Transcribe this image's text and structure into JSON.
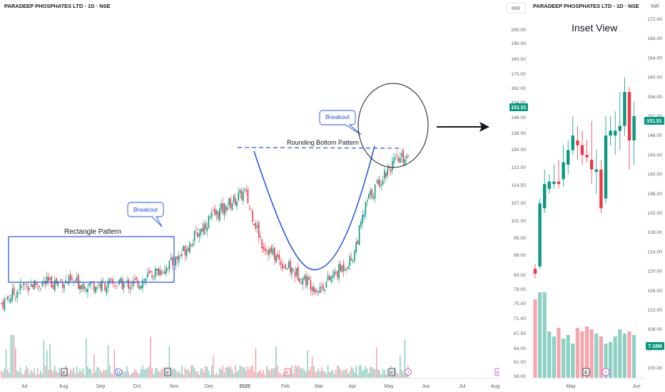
{
  "main": {
    "title": "PARADEEP PHOSPHATES LTD · 1D · NSE",
    "x_labels": [
      "Jul",
      "Aug",
      "Sep",
      "Oct",
      "Nov",
      "Dec",
      "2025",
      "Feb",
      "Mar",
      "Apr",
      "May",
      "Jun",
      "Jul",
      "Aug"
    ],
    "annotations": {
      "rectangle_label": "Rectangle Pattern",
      "breakout_left": "Breakout",
      "rounding_label": "Rounding Bottom Pattern",
      "breakout_right": "Breakout"
    },
    "event_markers": [
      {
        "type": "earnings",
        "glyph": "E",
        "month": "Aug"
      },
      {
        "type": "dividend",
        "glyph": "D",
        "month": "Oct"
      },
      {
        "type": "earnings",
        "glyph": "E",
        "month": "Nov"
      },
      {
        "type": "split",
        "glyph": "E",
        "month": "2025"
      },
      {
        "type": "earnings",
        "glyph": "E",
        "month": "May"
      },
      {
        "type": "flash",
        "glyph": "⚡",
        "month": "May"
      }
    ]
  },
  "inset": {
    "title": "PARADEEP PHOSPHATES LTD · 1D · NSE",
    "currency": "INR",
    "label": "Inset View",
    "left_axis": [
      "200.00",
      "190.00",
      "180.00",
      "170.00",
      "162.00",
      "154.00",
      "146.00",
      "138.00",
      "130.00",
      "122.00",
      "114.50",
      "107.00",
      "101.00",
      "95.00",
      "89.00",
      "83.00",
      "79.00",
      "75.00",
      "71.00",
      "67.50",
      "64.00",
      "61.00",
      "58.00"
    ],
    "right_axis": [
      "172.00",
      "168.00",
      "164.00",
      "160.00",
      "156.00",
      "152.00",
      "148.00",
      "144.00",
      "140.00",
      "136.00",
      "132.00",
      "128.00",
      "124.00",
      "120.00",
      "116.00",
      "112.00",
      "108.00",
      "104.00",
      "100.00"
    ],
    "right_currency": "INR",
    "price_badge_left": "151.51",
    "price_badge_right": "151.51",
    "volume_badge": "7.18M",
    "x_labels": [
      "May",
      "Jun"
    ],
    "event_markers": [
      {
        "type": "earnings",
        "glyph": "E"
      },
      {
        "type": "flash",
        "glyph": "⚡"
      }
    ]
  },
  "colors": {
    "up": "#089981",
    "down": "#f23645",
    "vol_up": "#8fd0c4",
    "vol_down": "#f5a6ad",
    "annotation": "#1e53e5",
    "dashed": "#1e53e5",
    "badge": "#089981"
  },
  "chart_data": [
    {
      "type": "candlestick",
      "title": "PARADEEP PHOSPHATES LTD · 1D · NSE",
      "x_labels": [
        "Jul",
        "Aug",
        "Sep",
        "Oct",
        "Nov",
        "Dec",
        "2025",
        "Feb",
        "Mar",
        "Apr",
        "May",
        "Jun",
        "Jul",
        "Aug"
      ],
      "price_path": [
        [
          "Jun",
          74
        ],
        [
          "Jul",
          84
        ],
        [
          "Aug",
          86
        ],
        [
          "Sep",
          84
        ],
        [
          "Oct",
          85
        ],
        [
          "Nov",
          96
        ],
        [
          "Dec",
          118
        ],
        [
          "2025",
          132
        ],
        [
          "Jan-mid",
          105
        ],
        [
          "Feb",
          94
        ],
        [
          "Mar",
          82
        ],
        [
          "Apr",
          98
        ],
        [
          "Apr-mid",
          128
        ],
        [
          "May",
          145
        ],
        [
          "May-end",
          151.51
        ]
      ],
      "patterns": [
        "Rectangle Pattern",
        "Rounding Bottom Pattern"
      ]
    },
    {
      "type": "candlestick",
      "title": "PARADEEP PHOSPHATES LTD · 1D · NSE",
      "label": "Inset View",
      "left_axis_range": [
        58,
        200
      ],
      "right_axis_range": [
        100,
        172
      ],
      "last_price": 151.51,
      "last_volume": "7.18M",
      "x_labels": [
        "May",
        "Jun"
      ]
    }
  ]
}
